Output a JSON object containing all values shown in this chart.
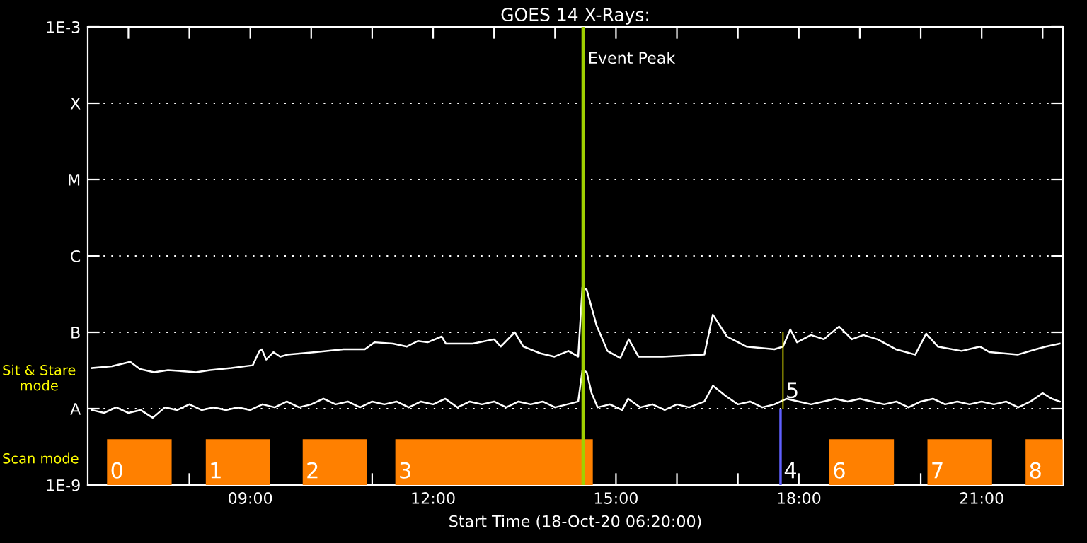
{
  "chart_data": {
    "type": "line",
    "title": "GOES 14 X-Rays:",
    "xlabel": "Start Time (18-Oct-20 06:20:00)",
    "xlim": [
      6.3333,
      22.3333
    ],
    "xticks": [
      {
        "value": 7,
        "label": null
      },
      {
        "value": 8,
        "label": null
      },
      {
        "value": 9,
        "label": "09:00"
      },
      {
        "value": 10,
        "label": null
      },
      {
        "value": 11,
        "label": null
      },
      {
        "value": 12,
        "label": "12:00"
      },
      {
        "value": 13,
        "label": null
      },
      {
        "value": 14,
        "label": null
      },
      {
        "value": 15,
        "label": "15:00"
      },
      {
        "value": 16,
        "label": null
      },
      {
        "value": 17,
        "label": null
      },
      {
        "value": 18,
        "label": "18:00"
      },
      {
        "value": 19,
        "label": null
      },
      {
        "value": 20,
        "label": null
      },
      {
        "value": 21,
        "label": "21:00"
      },
      {
        "value": 22,
        "label": null
      }
    ],
    "log": true,
    "ylim": [
      1e-09,
      0.001
    ],
    "yticks": [
      {
        "value": 1e-09,
        "label": "1E-9"
      },
      {
        "value": 1e-08,
        "label": "A"
      },
      {
        "value": 1e-07,
        "label": "B"
      },
      {
        "value": 1e-06,
        "label": "C"
      },
      {
        "value": 1e-05,
        "label": "M"
      },
      {
        "value": 0.0001,
        "label": "X"
      },
      {
        "value": 0.001,
        "label": "1E-3"
      }
    ],
    "grid": "y",
    "line_style": "solid",
    "series": [
      {
        "color": "#ffffff",
        "x": [
          6.4,
          6.73,
          7.03,
          7.19,
          7.42,
          7.65,
          8.11,
          8.34,
          8.69,
          9.04,
          9.15,
          9.19,
          9.26,
          9.38,
          9.49,
          9.61,
          10.07,
          10.53,
          10.88,
          11.04,
          11.34,
          11.57,
          11.75,
          11.91,
          12.14,
          12.21,
          12.65,
          13.0,
          13.11,
          13.34,
          13.48,
          13.76,
          13.99,
          14.22,
          14.38,
          14.45,
          14.52,
          14.68,
          14.86,
          15.07,
          15.21,
          15.37,
          15.76,
          16.45,
          16.59,
          16.82,
          17.14,
          17.6,
          17.74,
          17.86,
          17.97,
          18.2,
          18.41,
          18.66,
          18.87,
          19.06,
          19.29,
          19.59,
          19.91,
          20.09,
          20.28,
          20.67,
          20.97,
          21.13,
          21.59,
          21.89,
          22.05,
          22.28
        ],
        "values": [
          3.4e-08,
          3.6e-08,
          4.1e-08,
          3.3e-08,
          3e-08,
          3.2e-08,
          3e-08,
          3.2e-08,
          3.4e-08,
          3.7e-08,
          5.7e-08,
          6e-08,
          4.4e-08,
          5.5e-08,
          4.8e-08,
          5.1e-08,
          5.5e-08,
          6e-08,
          6e-08,
          7.4e-08,
          7.1e-08,
          6.5e-08,
          7.7e-08,
          7.4e-08,
          8.8e-08,
          7.1e-08,
          7.1e-08,
          8.1e-08,
          6.5e-08,
          1e-07,
          6.5e-08,
          5.3e-08,
          4.8e-08,
          5.7e-08,
          4.8e-08,
          3.9e-07,
          3.6e-07,
          1.24e-07,
          5.7e-08,
          4.6e-08,
          8.1e-08,
          4.8e-08,
          4.8e-08,
          5.1e-08,
          1.7e-07,
          8.8e-08,
          6.5e-08,
          6e-08,
          6.5e-08,
          1.09e-07,
          7.4e-08,
          9.2e-08,
          8.1e-08,
          1.19e-07,
          8.1e-08,
          9.2e-08,
          8.1e-08,
          6e-08,
          5.1e-08,
          9.6e-08,
          6.5e-08,
          5.7e-08,
          6.5e-08,
          5.5e-08,
          5.1e-08,
          6e-08,
          6.5e-08,
          7.1e-08
        ]
      },
      {
        "color": "#ffffff",
        "x": [
          6.4,
          6.6,
          6.8,
          7.0,
          7.2,
          7.4,
          7.6,
          7.8,
          8.0,
          8.2,
          8.4,
          8.6,
          8.8,
          9.0,
          9.2,
          9.4,
          9.6,
          9.8,
          10.0,
          10.2,
          10.4,
          10.6,
          10.8,
          11.0,
          11.2,
          11.4,
          11.6,
          11.8,
          12.0,
          12.2,
          12.4,
          12.6,
          12.8,
          13.0,
          13.2,
          13.4,
          13.6,
          13.8,
          14.0,
          14.2,
          14.38,
          14.45,
          14.52,
          14.6,
          14.7,
          14.9,
          15.1,
          15.2,
          15.4,
          15.6,
          15.8,
          16.0,
          16.2,
          16.45,
          16.59,
          16.8,
          17.0,
          17.2,
          17.4,
          17.6,
          17.8,
          18.0,
          18.2,
          18.4,
          18.6,
          18.8,
          19.0,
          19.2,
          19.4,
          19.6,
          19.8,
          20.0,
          20.2,
          20.4,
          20.6,
          20.8,
          21.0,
          21.2,
          21.4,
          21.6,
          21.8,
          22.0,
          22.15,
          22.28
        ],
        "values": [
          9.6e-09,
          8.8e-09,
          1.04e-08,
          8.8e-09,
          9.6e-09,
          7.6e-09,
          1.04e-08,
          9.6e-09,
          1.14e-08,
          9.6e-09,
          1.04e-08,
          9.6e-09,
          1.04e-08,
          9.6e-09,
          1.14e-08,
          1.04e-08,
          1.24e-08,
          1.04e-08,
          1.14e-08,
          1.35e-08,
          1.14e-08,
          1.24e-08,
          1.04e-08,
          1.24e-08,
          1.14e-08,
          1.24e-08,
          1.04e-08,
          1.24e-08,
          1.14e-08,
          1.35e-08,
          1.04e-08,
          1.24e-08,
          1.14e-08,
          1.24e-08,
          1.04e-08,
          1.24e-08,
          1.14e-08,
          1.24e-08,
          1.04e-08,
          1.14e-08,
          1.24e-08,
          3.2e-08,
          3e-08,
          1.6e-08,
          1.04e-08,
          1.14e-08,
          9.6e-09,
          1.35e-08,
          1.04e-08,
          1.14e-08,
          9.6e-09,
          1.14e-08,
          1.04e-08,
          1.24e-08,
          2e-08,
          1.47e-08,
          1.14e-08,
          1.24e-08,
          1.04e-08,
          1.14e-08,
          1.35e-08,
          1.24e-08,
          1.14e-08,
          1.24e-08,
          1.35e-08,
          1.24e-08,
          1.35e-08,
          1.24e-08,
          1.14e-08,
          1.24e-08,
          1.04e-08,
          1.24e-08,
          1.35e-08,
          1.14e-08,
          1.24e-08,
          1.14e-08,
          1.24e-08,
          1.14e-08,
          1.24e-08,
          1.04e-08,
          1.24e-08,
          1.6e-08,
          1.35e-08,
          1.24e-08
        ]
      }
    ],
    "ref_lines": [
      {
        "axis": "x",
        "value": 14.46,
        "label": "Event Peak",
        "color": "#a0d000"
      }
    ],
    "bands": [
      {
        "axis": "x",
        "from": 6.65,
        "to": 7.71,
        "label": "0",
        "color": "#ff8000"
      },
      {
        "axis": "x",
        "from": 8.27,
        "to": 9.32,
        "label": "1",
        "color": "#ff8000"
      },
      {
        "axis": "x",
        "from": 9.86,
        "to": 10.91,
        "label": "2",
        "color": "#ff8000"
      },
      {
        "axis": "x",
        "from": 11.38,
        "to": 14.62,
        "label": "3",
        "color": "#ff8000"
      },
      {
        "axis": "x",
        "from": 17.68,
        "to": 17.72,
        "label": "4",
        "color": "#6060ff"
      },
      {
        "axis": "x",
        "from": 17.73,
        "to": 17.75,
        "label": "5",
        "color": "#ffff00"
      },
      {
        "axis": "x",
        "from": 18.5,
        "to": 19.56,
        "label": "6",
        "color": "#ff8000"
      },
      {
        "axis": "x",
        "from": 20.11,
        "to": 21.17,
        "label": "7",
        "color": "#ff8000"
      },
      {
        "axis": "x",
        "from": 21.72,
        "to": 22.33,
        "label": "8",
        "color": "#ff8000"
      }
    ],
    "annotations": [
      "Sit & Stare\nmode",
      "Scan mode"
    ]
  }
}
